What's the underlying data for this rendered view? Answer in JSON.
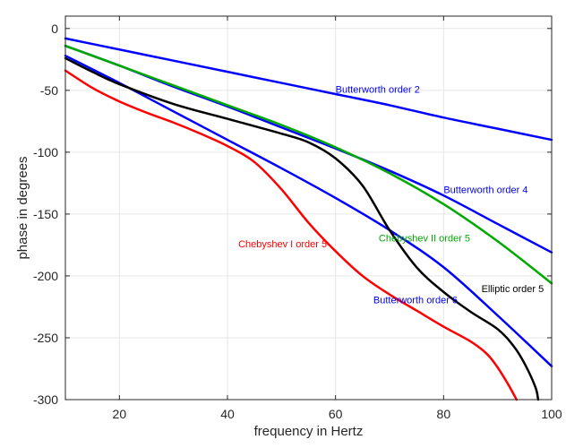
{
  "chart_data": {
    "type": "line",
    "xlabel": "frequency in Hertz",
    "ylabel": "phase in degrees",
    "xlim": [
      10,
      100
    ],
    "ylim": [
      -300,
      10
    ],
    "xticks": [
      20,
      40,
      60,
      80,
      100
    ],
    "yticks": [
      0,
      -50,
      -100,
      -150,
      -200,
      -250,
      -300
    ],
    "grid": true,
    "series": [
      {
        "name": "Butterworth order 2",
        "color": "#0000ff",
        "x": [
          10,
          20,
          30,
          40,
          50,
          60,
          70,
          80,
          90,
          100
        ],
        "y": [
          -8,
          -17,
          -26,
          -35,
          -44,
          -53,
          -62,
          -72,
          -81,
          -90
        ]
      },
      {
        "name": "Butterworth order 4",
        "color": "#0000ff",
        "x": [
          10,
          20,
          30,
          40,
          50,
          60,
          70,
          80,
          90,
          100
        ],
        "y": [
          -14,
          -30,
          -47,
          -63,
          -80,
          -97,
          -115,
          -135,
          -158,
          -181
        ]
      },
      {
        "name": "Butterworth order 6",
        "color": "#0000ff",
        "x": [
          10,
          20,
          30,
          40,
          50,
          60,
          70,
          80,
          90,
          100
        ],
        "y": [
          -22,
          -44,
          -67,
          -90,
          -113,
          -137,
          -163,
          -193,
          -232,
          -273
        ]
      },
      {
        "name": "Chebyshev II order 5",
        "color": "#00aa00",
        "x": [
          10,
          20,
          30,
          40,
          50,
          60,
          70,
          80,
          90,
          100
        ],
        "y": [
          -14,
          -30,
          -46,
          -62,
          -78,
          -96,
          -117,
          -142,
          -172,
          -206
        ]
      },
      {
        "name": "Elliptic order 5",
        "color": "#000000",
        "x": [
          10,
          15,
          20,
          30,
          40,
          50,
          55,
          60,
          65,
          70,
          75,
          80,
          85,
          90,
          93,
          95,
          97,
          97.5
        ],
        "y": [
          -24,
          -35,
          -45,
          -61,
          -73,
          -85,
          -92,
          -105,
          -127,
          -163,
          -193,
          -213,
          -229,
          -243,
          -257,
          -271,
          -290,
          -300
        ]
      },
      {
        "name": "Chebyshev I order 5",
        "color": "#ff0000",
        "x": [
          10,
          15,
          20,
          25,
          30,
          35,
          40,
          45,
          50,
          55,
          60,
          65,
          70,
          75,
          80,
          85,
          88,
          90,
          92,
          93.5
        ],
        "y": [
          -34,
          -48,
          -59,
          -68,
          -76,
          -85,
          -95,
          -108,
          -130,
          -157,
          -180,
          -200,
          -215,
          -228,
          -241,
          -253,
          -263,
          -274,
          -288,
          -300
        ]
      }
    ],
    "annotations": [
      {
        "text": "Butterworth order 2",
        "x": 60,
        "y": -52,
        "color": "#0000ff"
      },
      {
        "text": "Butterworth order 4",
        "x": 80,
        "y": -133,
        "color": "#0000ff"
      },
      {
        "text": "Chebyshev II order 5",
        "x": 68,
        "y": -172,
        "color": "#00aa00"
      },
      {
        "text": "Chebyshev I order 5",
        "x": 42,
        "y": -177,
        "color": "#ff0000"
      },
      {
        "text": "Elliptic order 5",
        "x": 87,
        "y": -213,
        "color": "#000000"
      },
      {
        "text": "Butterworth order 6",
        "x": 67,
        "y": -222,
        "color": "#0000ff"
      }
    ]
  }
}
